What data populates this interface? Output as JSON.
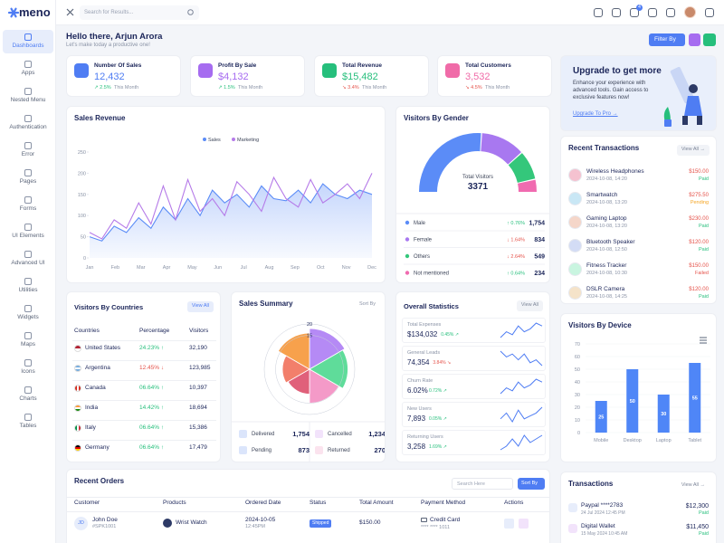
{
  "brand": "meno",
  "search": "Search for Results...",
  "badge": "4",
  "nav": [
    "Dashboards",
    "Apps",
    "Nested Menu",
    "Authentication",
    "Error",
    "Pages",
    "Forms",
    "UI Elements",
    "Advanced UI",
    "Utilities",
    "Widgets",
    "Maps",
    "Icons",
    "Charts",
    "Tables"
  ],
  "greeting": {
    "title": "Hello there, Arjun Arora",
    "subtitle": "Let's make today a productive one!",
    "filter": "Filter By"
  },
  "stats": [
    {
      "title": "Number Of Sales",
      "value": "12,432",
      "change": "↗ 2.5%",
      "period": "This Month",
      "trend": "up",
      "color": "#4f7df3"
    },
    {
      "title": "Profit By Sale",
      "value": "$4,132",
      "change": "↗ 1.5%",
      "period": "This Month",
      "trend": "up",
      "color": "#a66cf0"
    },
    {
      "title": "Total Revenue",
      "value": "$15,482",
      "change": "↘ 3.4%",
      "period": "This Month",
      "trend": "down",
      "color": "#26bf7c"
    },
    {
      "title": "Total Customers",
      "value": "3,532",
      "change": "↘ 4.5%",
      "period": "This Month",
      "trend": "down",
      "color": "#f06ba8"
    }
  ],
  "upgrade": {
    "title": "Upgrade to get more",
    "text": [
      "Enhance your experience with",
      "advanced tools. Gain access to",
      "exclusive features now!"
    ],
    "link": "Upgrade To Pro →"
  },
  "sales_revenue": {
    "title": "Sales Revenue",
    "ylim": [
      0,
      250
    ],
    "yticks": [
      0,
      50,
      100,
      150,
      200,
      250
    ],
    "months": [
      "Jan",
      "Feb",
      "Mar",
      "Apr",
      "May",
      "Jun",
      "Jul",
      "Aug",
      "Sep",
      "Oct",
      "Nov",
      "Dec"
    ],
    "series": [
      {
        "name": "Sales",
        "color": "#5b8cf7",
        "values": [
          50,
          40,
          75,
          60,
          95,
          70,
          120,
          90,
          140,
          100,
          160,
          130,
          150,
          120,
          170,
          140,
          135,
          160,
          130,
          175,
          150,
          140,
          160,
          150
        ]
      },
      {
        "name": "Marketing",
        "color": "#b57ae8",
        "values": [
          60,
          45,
          90,
          70,
          130,
          80,
          170,
          90,
          185,
          110,
          140,
          100,
          180,
          150,
          110,
          190,
          140,
          120,
          185,
          130,
          150,
          175,
          140,
          200
        ]
      }
    ]
  },
  "gender": {
    "title": "Visitors By Gender",
    "center_label": "Total Visitors",
    "total": "3371",
    "items": [
      {
        "name": "Male",
        "change": "↑ 0.76%",
        "trend": "up",
        "value": 1754,
        "value_label": "1,754",
        "color": "#5b8cf7"
      },
      {
        "name": "Female",
        "change": "↓ 1.64%",
        "trend": "down",
        "value": 834,
        "value_label": "834",
        "color": "#a878f0"
      },
      {
        "name": "Others",
        "change": "↓ 2.64%",
        "trend": "down",
        "value": 549,
        "value_label": "549",
        "color": "#34c77b"
      },
      {
        "name": "Not mentioned",
        "change": "↑ 0.64%",
        "trend": "up",
        "value": 234,
        "value_label": "234",
        "color": "#f06bb0"
      }
    ]
  },
  "recent_transactions": {
    "title": "Recent Transactions",
    "view": "View All →",
    "items": [
      {
        "name": "Wireless Headphones",
        "date": "2024-10-08, 14:20",
        "amount": "$150.00",
        "status": "Paid",
        "color": "#26bf7c"
      },
      {
        "name": "Smartwatch",
        "date": "2024-10-08, 13:20",
        "amount": "$275.50",
        "status": "Pending",
        "color": "#f5a524"
      },
      {
        "name": "Gaming Laptop",
        "date": "2024-10-08, 13:20",
        "amount": "$230.00",
        "status": "Paid",
        "color": "#26bf7c"
      },
      {
        "name": "Bluetooth Speaker",
        "date": "2024-10-08, 12:50",
        "amount": "$120.00",
        "status": "Paid",
        "color": "#26bf7c"
      },
      {
        "name": "Fitness Tracker",
        "date": "2024-10-08, 10:30",
        "amount": "$150.00",
        "status": "Failed",
        "color": "#e5534b"
      },
      {
        "name": "DSLR Camera",
        "date": "2024-10-08, 14:25",
        "amount": "$120.00",
        "status": "Paid",
        "color": "#26bf7c"
      }
    ]
  },
  "countries": {
    "title": "Visitors By Countries",
    "view": "View All",
    "columns": [
      "Countries",
      "Percentage",
      "Visitors"
    ],
    "rows": [
      {
        "name": "United States",
        "percentage": "24.23% ↑",
        "trend": "up",
        "visitors": "32,190"
      },
      {
        "name": "Argentina",
        "percentage": "12.45% ↓",
        "trend": "down",
        "visitors": "123,985"
      },
      {
        "name": "Canada",
        "percentage": "06.64% ↑",
        "trend": "up",
        "visitors": "10,397"
      },
      {
        "name": "India",
        "percentage": "14.42% ↑",
        "trend": "up",
        "visitors": "18,694"
      },
      {
        "name": "Italy",
        "percentage": "06.64% ↑",
        "trend": "up",
        "visitors": "15,386"
      },
      {
        "name": "Germany",
        "percentage": "06.64% ↑",
        "trend": "up",
        "visitors": "17,479"
      }
    ]
  },
  "sales_summary": {
    "title": "Sales Summary",
    "sort": "Sort By",
    "rlim": [
      0,
      20
    ],
    "rticks": [
      15,
      20
    ],
    "values": [
      18,
      17,
      15,
      11,
      12,
      16
    ],
    "colors": [
      "#b58af5",
      "#5fdc9a",
      "#f49ac8",
      "#e0607a",
      "#f27f6b",
      "#f7a14c"
    ],
    "totals": [
      {
        "name": "Delivered",
        "value": "1,754"
      },
      {
        "name": "Cancelled",
        "value": "1,234"
      },
      {
        "name": "Pending",
        "value": "873"
      },
      {
        "name": "Returned",
        "value": "270"
      }
    ]
  },
  "overall": {
    "title": "Overall Statistics",
    "view": "View All",
    "items": [
      {
        "label": "Total Expenses",
        "value": "$134,032",
        "change": "0.45% ↗",
        "trend": "up",
        "spark": [
          5,
          7,
          6,
          9,
          7,
          8,
          10,
          9
        ]
      },
      {
        "label": "General Leads",
        "value": "74,354",
        "change": "3.84% ↘",
        "trend": "down",
        "spark": [
          9,
          7,
          8,
          6,
          8,
          5,
          6,
          4
        ]
      },
      {
        "label": "Churn Rate",
        "value": "6.02%",
        "change": "0.72% ↗",
        "trend": "up",
        "spark": [
          4,
          6,
          5,
          8,
          6,
          7,
          9,
          8
        ]
      },
      {
        "label": "New Users",
        "value": "7,893",
        "change": "0.05% ↗",
        "trend": "up",
        "spark": [
          6,
          8,
          5,
          9,
          6,
          7,
          8,
          10
        ]
      },
      {
        "label": "Returning Users",
        "value": "3,258",
        "change": "1.69% ↗",
        "trend": "up",
        "spark": [
          5,
          6,
          8,
          6,
          9,
          7,
          8,
          9
        ]
      }
    ]
  },
  "device": {
    "title": "Visitors By Device",
    "categories": [
      "Mobile",
      "Desktop",
      "Laptop",
      "Tablet"
    ],
    "values": [
      25,
      50,
      30,
      55
    ],
    "color": "#4f86f7",
    "ylim": [
      0,
      70
    ],
    "yticks": [
      0,
      10,
      20,
      30,
      40,
      50,
      60,
      70
    ]
  },
  "orders": {
    "title": "Recent Orders",
    "search": "Search Here",
    "sort": "Sort By",
    "columns": [
      "Customer",
      "Products",
      "Ordered Date",
      "Status",
      "Total Amount",
      "Payment Method",
      "Actions"
    ],
    "rows": [
      {
        "initials": "JD",
        "name": "John Doe",
        "id": "#SPK1001",
        "product": "Wrist Watch",
        "date": "2024-10-05",
        "time": "12:45PM",
        "status": "Shipped",
        "amount": "$150.00",
        "payment": "Credit Card",
        "card": "**** **** 1011"
      }
    ]
  },
  "transactions": {
    "title": "Transactions",
    "view": "View All →",
    "items": [
      {
        "name": "Paypal ****2783",
        "date": "24 Jul 2024 12:45 PM",
        "amount": "$12,300",
        "status": "Paid"
      },
      {
        "name": "Digital Wallet",
        "date": "15 May 2024 10:45 AM",
        "amount": "$11,450",
        "status": "Paid"
      }
    ]
  }
}
